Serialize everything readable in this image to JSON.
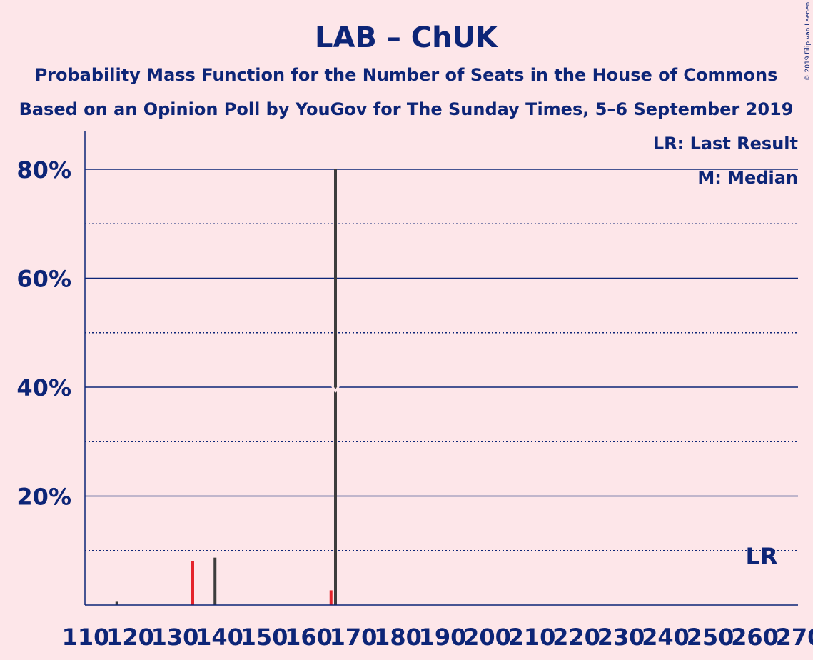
{
  "chart_data": {
    "type": "bar",
    "title": "LAB – ChUK",
    "subtitle": "Probability Mass Function for the Number of Seats in the House of Commons",
    "subtitle2": "Based on an Opinion Poll by YouGov for The Sunday Times, 5–6 September 2019",
    "copyright": "© 2019 Filip van Laenen",
    "legend": {
      "last_result": "LR: Last Result",
      "median": "M: Median"
    },
    "last_result_label": "LR",
    "median_label": "M",
    "last_result_seats": 262,
    "median_seats": 166,
    "xlim": [
      110,
      270
    ],
    "ylim": [
      0,
      87
    ],
    "x_ticks": [
      110,
      120,
      130,
      140,
      150,
      160,
      170,
      180,
      190,
      200,
      210,
      220,
      230,
      240,
      250,
      260,
      270
    ],
    "y_ticks": [
      {
        "value": 20,
        "label": "20%"
      },
      {
        "value": 40,
        "label": "40%"
      },
      {
        "value": 60,
        "label": "60%"
      },
      {
        "value": 80,
        "label": "80%"
      }
    ],
    "y_minor_ticks": [
      10,
      30,
      50,
      70
    ],
    "colors": {
      "primary": "#e4232b",
      "secondary": "#3d3d3d",
      "axis": "#0d2577",
      "background": "#fde6e9"
    },
    "bars": [
      {
        "x": 117,
        "value": 0.6,
        "color": "secondary"
      },
      {
        "x": 134,
        "value": 8.0,
        "color": "primary"
      },
      {
        "x": 139,
        "value": 8.7,
        "color": "secondary"
      },
      {
        "x": 165,
        "value": 2.7,
        "color": "primary"
      },
      {
        "x": 166,
        "value": 80.0,
        "color": "secondary"
      }
    ]
  }
}
